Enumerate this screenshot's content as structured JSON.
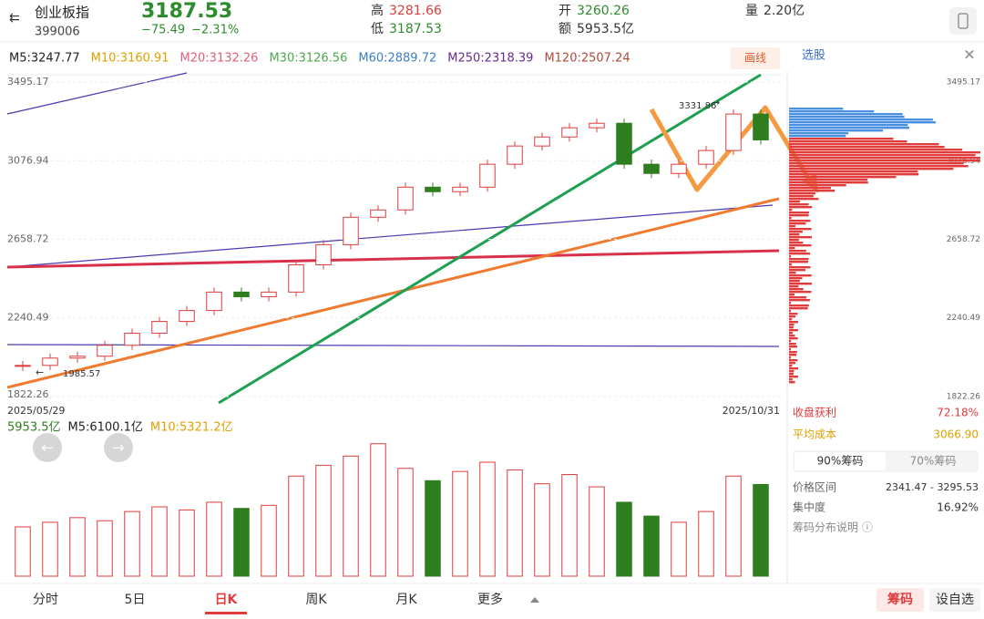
{
  "header": {
    "name": "创业板指",
    "code": "399006",
    "price": "3187.53",
    "change": "−75.49",
    "change_pct": "−2.31%",
    "high_label": "高",
    "high": "3281.66",
    "low_label": "低",
    "low": "3187.53",
    "open_label": "开",
    "open": "3260.26",
    "amount_label": "额",
    "amount": "5953.5亿",
    "volume_label": "量",
    "volume": "2.20亿"
  },
  "ma_legend": [
    {
      "text": "M5:3247.77",
      "color": "#222222"
    },
    {
      "text": "M10:3160.91",
      "color": "#e0a000"
    },
    {
      "text": "M20:3132.26",
      "color": "#e0607a"
    },
    {
      "text": "M30:3126.56",
      "color": "#4caa4c"
    },
    {
      "text": "M60:2889.72",
      "color": "#3a7fc0"
    },
    {
      "text": "M250:2318.39",
      "color": "#6a2a8a"
    },
    {
      "text": "M120:2507.24",
      "color": "#b04a3a"
    }
  ],
  "draw_button": "画线",
  "stock_pick": "选股",
  "chart_data": {
    "type": "candlestick",
    "up_color": "#e03c3c",
    "down_color": "#2e7d1e",
    "close": [
      1988,
      2027,
      2037,
      2095,
      2159,
      2222,
      2280,
      2378,
      2353,
      2378,
      2523,
      2630,
      2776,
      2815,
      2936,
      2912,
      2936,
      3058,
      3155,
      3203,
      3252,
      3276,
      3058,
      3009,
      3058,
      3131,
      3325,
      3187.53
    ],
    "volume": [
      3200,
      3500,
      3800,
      3600,
      4200,
      4500,
      4300,
      4800,
      4400,
      4600,
      6500,
      7200,
      7800,
      8600,
      7000,
      6200,
      6800,
      7400,
      6900,
      6000,
      6600,
      5800,
      4800,
      3900,
      3500,
      4200,
      6500,
      5953.5
    ],
    "ylim": [
      1822.26,
      3495.17
    ],
    "yticks": [
      1822.26,
      2240.49,
      2658.72,
      3076.94,
      3495.17
    ],
    "volume_ylim": [
      0,
      9000
    ],
    "start_date": "2025/05/29",
    "end_date": "2025/10/31",
    "annotations": [
      "3331.86",
      "1985.57"
    ],
    "volume_legend": [
      {
        "text": "5953.5亿",
        "color": "#2e7d1e"
      },
      {
        "text": "M5:6100.1亿",
        "color": "#222222"
      },
      {
        "text": "M10:5321.2亿",
        "color": "#e0a000"
      }
    ]
  },
  "chips": {
    "profit_label": "收盘获利",
    "profit": "72.18%",
    "cost_label": "平均成本",
    "cost": "3066.90",
    "tabs": [
      "90%筹码",
      "70%筹码"
    ],
    "range_label": "价格区间",
    "range": "2341.47 - 3295.53",
    "concentration_label": "集中度",
    "concentration": "16.92%",
    "help": "筹码分布说明 ⓘ"
  },
  "tabs": [
    "分时",
    "5日",
    "日K",
    "周K",
    "月K",
    "更多"
  ],
  "buttons": [
    "筹码",
    "设自选"
  ]
}
